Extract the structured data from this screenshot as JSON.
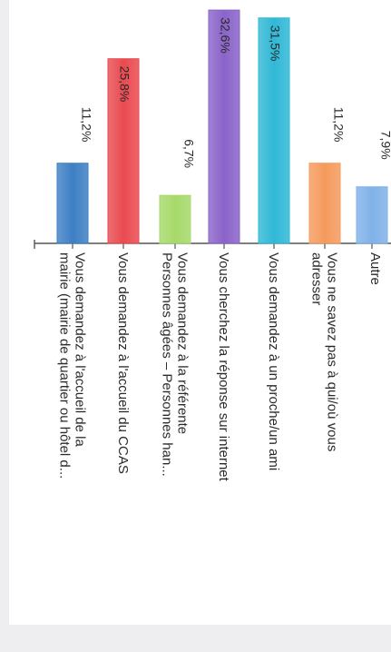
{
  "chart_data": {
    "type": "bar",
    "categories": [
      [
        "Vous demandez à l'accueil de la",
        "mairie (mairie de quartier ou hôtel d..."
      ],
      [
        "Vous demandez à l'accueil du CCAS"
      ],
      [
        "Vous demandez à la référente",
        "Personnes âgées – Personnes han..."
      ],
      [
        "Vous cherchez la réponse sur internet"
      ],
      [
        "Vous demandez à un proche/un ami"
      ],
      [
        "Vous ne savez pas à qui/où vous",
        "adresser"
      ],
      [
        "Autre"
      ]
    ],
    "values": [
      11.2,
      25.8,
      6.7,
      32.6,
      31.5,
      11.2,
      7.9
    ],
    "value_labels": [
      "11,2%",
      "25,8%",
      "6,7%",
      "32,6%",
      "31,5%",
      "11,2%",
      "7,9%"
    ],
    "colors": [
      "#3d7fc4",
      "#e94a50",
      "#a6d96a",
      "#8a63c9",
      "#2fb8d6",
      "#f59a5c",
      "#7fb2e8"
    ],
    "ylim": [
      0,
      33.5
    ],
    "orientation": "rotated-90-clockwise"
  }
}
